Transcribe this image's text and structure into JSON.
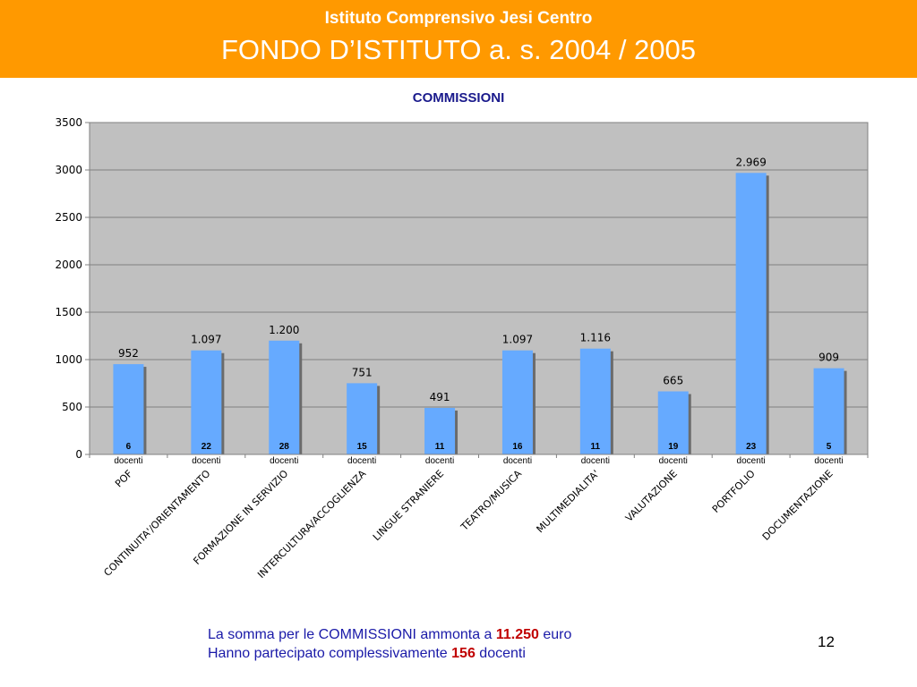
{
  "header": {
    "school": "Istituto Comprensivo Jesi Centro",
    "fund": "FONDO D’ISTITUTO a. s. 2004 / 2005",
    "background_color": "#ff9900"
  },
  "chart_data": {
    "type": "bar",
    "title": "COMMISSIONI",
    "categories": [
      "POF",
      "CONTINUITA'/ORIENTAMENTO",
      "FORMAZIONE IN SERVIZIO",
      "INTERCULTURA/ACCOGLIENZA",
      "LINGUE STRANIERE",
      "TEATRO/MUSICA",
      "MULTIMEDIALITA'",
      "VALUTAZIONE",
      "PORTFOLIO",
      "DOCUMENTAZIONE"
    ],
    "values": [
      952,
      1097,
      1200,
      751,
      491,
      1097,
      1116,
      665,
      2969,
      909
    ],
    "value_labels": [
      "952",
      "1.097",
      "1.200",
      "751",
      "491",
      "1.097",
      "1.116",
      "665",
      "2.969",
      "909"
    ],
    "docenti": [
      "6",
      "22",
      "28",
      "15",
      "11",
      "16",
      "11",
      "19",
      "23",
      "5"
    ],
    "docenti_label": "docenti",
    "ylim": [
      0,
      3500
    ],
    "yticks": [
      "0",
      "500",
      "1000",
      "1500",
      "2000",
      "2500",
      "3000",
      "3500"
    ],
    "grid": true,
    "bar_color": "#66aaff",
    "plot_background": "#c0c0c0"
  },
  "summary": {
    "line1_prefix": "La somma per le COMMISSIONI  ammonta  a ",
    "line1_amount": "11.250",
    "line1_suffix": " euro",
    "line2_prefix": "Hanno partecipato  complessivamente ",
    "line2_count": "156",
    "line2_suffix": " docenti"
  },
  "page_number": "12"
}
